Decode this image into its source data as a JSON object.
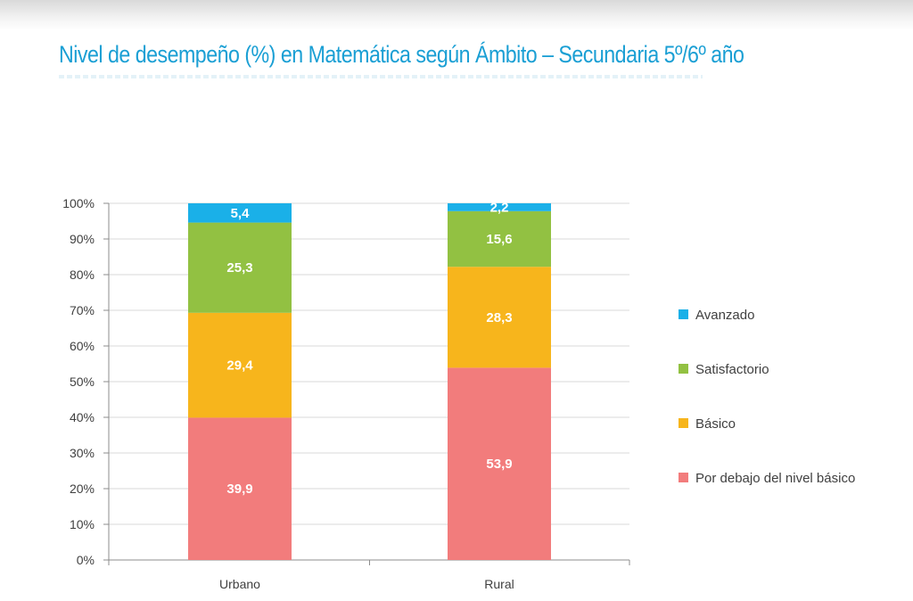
{
  "title": "Nivel de desempeño (%) en Matemática según Ámbito – Secundaria 5º/6º año",
  "chart_data": {
    "type": "bar",
    "stacked": true,
    "categories": [
      "Urbano",
      "Rural"
    ],
    "series": [
      {
        "name": "Por debajo del nivel básico",
        "values": [
          39.9,
          53.9
        ],
        "labels": [
          "39,9",
          "53,9"
        ],
        "color": "#f27c7c"
      },
      {
        "name": "Básico",
        "values": [
          29.4,
          28.3
        ],
        "labels": [
          "29,4",
          "28,3"
        ],
        "color": "#f7b51c"
      },
      {
        "name": "Satisfactorio",
        "values": [
          25.3,
          15.6
        ],
        "labels": [
          "25,3",
          "15,6"
        ],
        "color": "#92c142"
      },
      {
        "name": "Avanzado",
        "values": [
          5.4,
          2.2
        ],
        "labels": [
          "5,4",
          "2,2"
        ],
        "color": "#1ab0e8"
      }
    ],
    "ylim": [
      0,
      100
    ],
    "yticks": [
      "0%",
      "10%",
      "20%",
      "30%",
      "40%",
      "50%",
      "60%",
      "70%",
      "80%",
      "90%",
      "100%"
    ],
    "grid": true,
    "legend_position": "right"
  }
}
